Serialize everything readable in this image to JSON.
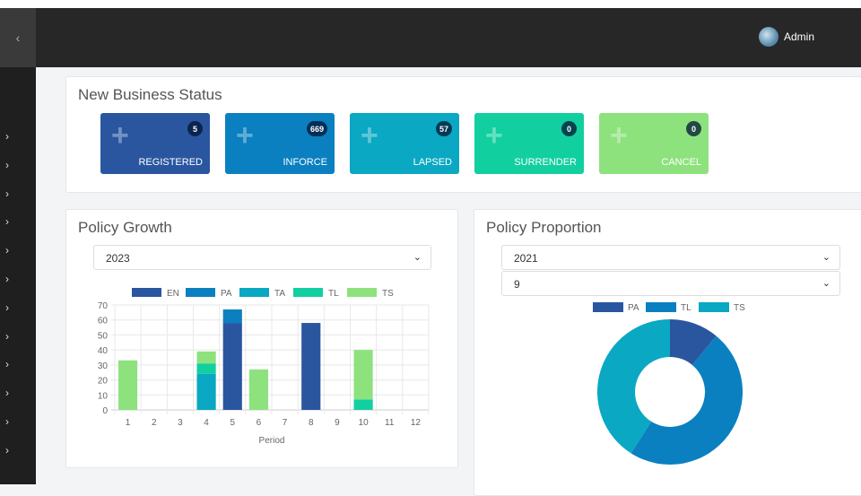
{
  "header": {
    "toggle_icon": "chevron-left-icon",
    "user_name": "Admin"
  },
  "sidebar": {
    "item_count": 12,
    "icon": "chevron-right-icon"
  },
  "new_business": {
    "title": "New Business Status",
    "cards": [
      {
        "label": "REGISTERED",
        "count": "5",
        "color": "#2a56a0"
      },
      {
        "label": "INFORCE",
        "count": "669",
        "color": "#0b80c0"
      },
      {
        "label": "LAPSED",
        "count": "57",
        "color": "#0aa8c2"
      },
      {
        "label": "SURRENDER",
        "count": "0",
        "color": "#12cfa0"
      },
      {
        "label": "CANCEL",
        "count": "0",
        "color": "#8de27e"
      }
    ]
  },
  "policy_growth": {
    "title": "Policy Growth",
    "year_select": "2023"
  },
  "policy_proportion": {
    "title": "Policy Proportion",
    "year_select": "2021",
    "month_select": "9"
  },
  "chart_data": [
    {
      "type": "bar",
      "stacked": true,
      "categories": [
        "1",
        "2",
        "3",
        "4",
        "5",
        "6",
        "7",
        "8",
        "9",
        "10",
        "11",
        "12"
      ],
      "xlabel": "Period",
      "ylabel": "",
      "ylim": [
        0,
        70
      ],
      "yticks": [
        0,
        10,
        20,
        30,
        40,
        50,
        60,
        70
      ],
      "grid": true,
      "legend": "top",
      "series": [
        {
          "name": "EN",
          "color": "#2a56a0",
          "values": [
            0,
            0,
            0,
            0,
            58,
            0,
            0,
            58,
            0,
            0,
            0,
            0
          ]
        },
        {
          "name": "PA",
          "color": "#0b80c0",
          "values": [
            0,
            0,
            0,
            0,
            9,
            0,
            0,
            0,
            0,
            0,
            0,
            0
          ]
        },
        {
          "name": "TA",
          "color": "#0aa8c2",
          "values": [
            0,
            0,
            0,
            24,
            0,
            0,
            0,
            0,
            0,
            0,
            0,
            0
          ]
        },
        {
          "name": "TL",
          "color": "#12cfa0",
          "values": [
            0,
            0,
            0,
            7,
            0,
            0,
            0,
            0,
            0,
            7,
            0,
            0
          ]
        },
        {
          "name": "TS",
          "color": "#8de27e",
          "values": [
            33,
            0,
            0,
            8,
            0,
            27,
            0,
            0,
            0,
            33,
            0,
            0
          ]
        }
      ]
    },
    {
      "type": "pie",
      "donut": true,
      "legend": "top",
      "categories": [
        "PA",
        "TL",
        "TS"
      ],
      "colors": [
        "#2a56a0",
        "#0b80c0",
        "#0aa8c2"
      ],
      "values": [
        11,
        48,
        41
      ]
    }
  ]
}
